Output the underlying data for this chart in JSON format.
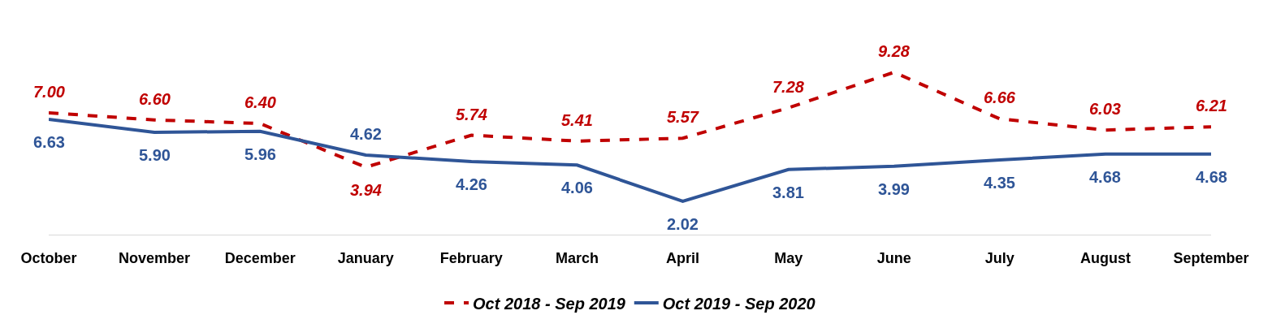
{
  "chart_data": {
    "type": "line",
    "categories": [
      "October",
      "November",
      "December",
      "January",
      "February",
      "March",
      "April",
      "May",
      "June",
      "July",
      "August",
      "September"
    ],
    "series": [
      {
        "name": "Oct 2018 - Sep 2019",
        "color": "#c00000",
        "line_style": "dashed",
        "values": [
          7.0,
          6.6,
          6.4,
          3.94,
          5.74,
          5.41,
          5.57,
          7.28,
          9.28,
          6.66,
          6.03,
          6.21
        ],
        "value_labels": [
          "7.00",
          "6.60",
          "6.40",
          "3.94",
          "5.74",
          "5.41",
          "5.57",
          "7.28",
          "9.28",
          "6.66",
          "6.03",
          "6.21"
        ]
      },
      {
        "name": "Oct 2019 - Sep 2020",
        "color": "#2f5597",
        "line_style": "solid",
        "values": [
          6.63,
          5.9,
          5.96,
          4.62,
          4.26,
          4.06,
          2.02,
          3.81,
          3.99,
          4.35,
          4.68,
          4.68
        ],
        "value_labels": [
          "6.63",
          "5.90",
          "5.96",
          "4.62",
          "4.26",
          "4.06",
          "2.02",
          "3.81",
          "3.99",
          "4.35",
          "4.68",
          "4.68"
        ]
      }
    ],
    "grid": false,
    "legend": "bottom",
    "marker": "none"
  }
}
